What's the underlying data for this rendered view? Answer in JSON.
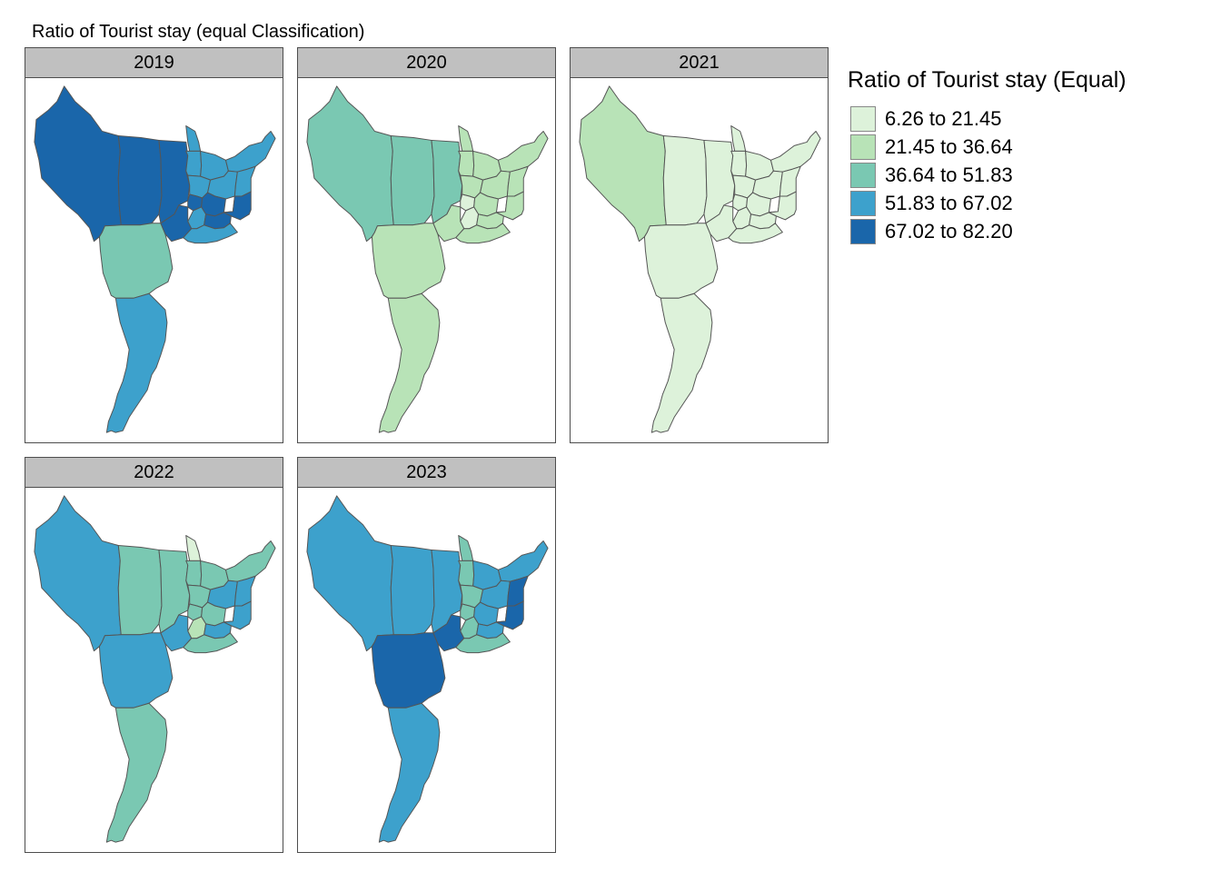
{
  "title": "Ratio of Tourist stay (equal Classification)",
  "legend": {
    "title": "Ratio of Tourist stay (Equal)",
    "classes": [
      {
        "label": "6.26 to 21.45",
        "color": "#ddf2da"
      },
      {
        "label": "21.45 to 36.64",
        "color": "#b8e3b7"
      },
      {
        "label": "36.64 to 51.83",
        "color": "#7ac8b2"
      },
      {
        "label": "51.83 to 67.02",
        "color": "#3da1cc"
      },
      {
        "label": "67.02 to 82.20",
        "color": "#1a66aa"
      }
    ]
  },
  "panels": [
    {
      "year": "2019",
      "classes": [
        4,
        4,
        4,
        3,
        3,
        3,
        3,
        3,
        3,
        4,
        4,
        3,
        4,
        3,
        3,
        4,
        2,
        4,
        3,
        3
      ]
    },
    {
      "year": "2020",
      "classes": [
        2,
        2,
        2,
        1,
        1,
        1,
        1,
        1,
        1,
        0,
        1,
        0,
        1,
        1,
        1,
        1,
        1,
        1,
        1,
        1
      ]
    },
    {
      "year": "2021",
      "classes": [
        1,
        0,
        0,
        0,
        0,
        0,
        0,
        0,
        0,
        0,
        0,
        0,
        0,
        0,
        0,
        0,
        0,
        0,
        0,
        0
      ]
    },
    {
      "year": "2022",
      "classes": [
        3,
        2,
        2,
        0,
        2,
        2,
        2,
        2,
        3,
        2,
        2,
        1,
        3,
        1,
        3,
        3,
        3,
        3,
        2,
        2
      ]
    },
    {
      "year": "2023",
      "classes": [
        3,
        3,
        3,
        2,
        2,
        3,
        3,
        2,
        3,
        2,
        3,
        2,
        3,
        2,
        4,
        4,
        4,
        4,
        2,
        3
      ]
    }
  ]
}
